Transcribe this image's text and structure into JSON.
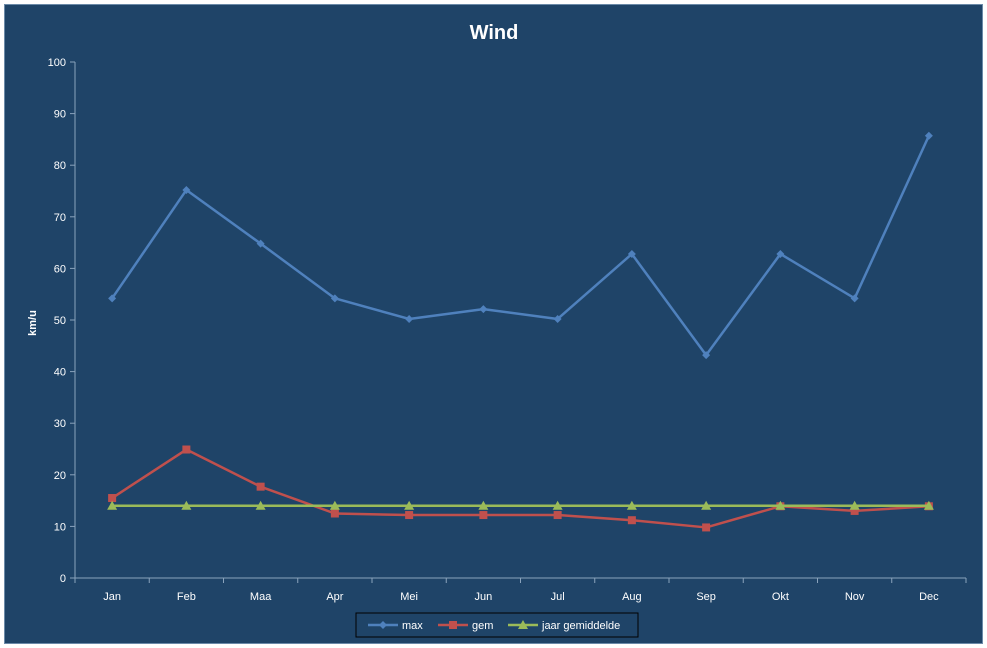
{
  "chart_data": {
    "type": "line",
    "title": "Wind",
    "xlabel": "",
    "ylabel": "km/u",
    "ylim": [
      0,
      100
    ],
    "yticks": [
      0,
      10,
      20,
      30,
      40,
      50,
      60,
      70,
      80,
      90,
      100
    ],
    "grid": false,
    "legend_position": "bottom",
    "categories": [
      "Jan",
      "Feb",
      "Maa",
      "Apr",
      "Mei",
      "Jun",
      "Jul",
      "Aug",
      "Sep",
      "Okt",
      "Nov",
      "Dec"
    ],
    "series": [
      {
        "name": "max",
        "color": "#4f81bd",
        "marker": "diamond",
        "values": [
          54.2,
          75.2,
          64.8,
          54.2,
          50.2,
          52.1,
          50.2,
          62.8,
          43.2,
          62.8,
          54.2,
          85.7
        ]
      },
      {
        "name": "gem",
        "color": "#c0504d",
        "marker": "square",
        "values": [
          15.5,
          24.9,
          17.7,
          12.5,
          12.2,
          12.2,
          12.2,
          11.2,
          9.8,
          13.9,
          13.0,
          13.9
        ]
      },
      {
        "name": "jaar gemiddelde",
        "color": "#9bbb59",
        "marker": "triangle",
        "values": [
          14.0,
          14.0,
          14.0,
          14.0,
          14.0,
          14.0,
          14.0,
          14.0,
          14.0,
          14.0,
          14.0,
          14.0
        ]
      }
    ]
  }
}
